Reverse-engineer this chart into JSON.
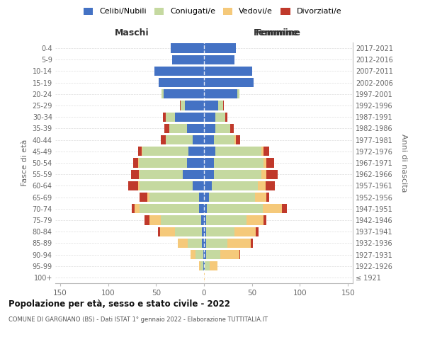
{
  "age_groups": [
    "100+",
    "95-99",
    "90-94",
    "85-89",
    "80-84",
    "75-79",
    "70-74",
    "65-69",
    "60-64",
    "55-59",
    "50-54",
    "45-49",
    "40-44",
    "35-39",
    "30-34",
    "25-29",
    "20-24",
    "15-19",
    "10-14",
    "5-9",
    "0-4"
  ],
  "birth_years": [
    "≤ 1921",
    "1922-1926",
    "1927-1931",
    "1932-1936",
    "1937-1941",
    "1942-1946",
    "1947-1951",
    "1952-1956",
    "1957-1961",
    "1962-1966",
    "1967-1971",
    "1972-1976",
    "1977-1981",
    "1982-1986",
    "1987-1991",
    "1992-1996",
    "1997-2001",
    "2002-2006",
    "2007-2011",
    "2012-2016",
    "2017-2021"
  ],
  "males": {
    "celibi": [
      0,
      1,
      1,
      2,
      2,
      3,
      5,
      5,
      12,
      22,
      18,
      16,
      12,
      18,
      30,
      20,
      42,
      47,
      52,
      33,
      35
    ],
    "coniugati": [
      0,
      3,
      8,
      15,
      28,
      42,
      62,
      52,
      55,
      45,
      50,
      48,
      28,
      18,
      10,
      4,
      2,
      0,
      0,
      0,
      0
    ],
    "vedovi": [
      0,
      1,
      5,
      10,
      16,
      12,
      5,
      2,
      2,
      1,
      1,
      1,
      0,
      0,
      0,
      0,
      0,
      0,
      0,
      0,
      0
    ],
    "divorziati": [
      0,
      0,
      0,
      0,
      2,
      5,
      3,
      8,
      10,
      8,
      5,
      4,
      5,
      5,
      3,
      1,
      0,
      0,
      0,
      0,
      0
    ]
  },
  "females": {
    "nubili": [
      0,
      1,
      2,
      2,
      2,
      2,
      3,
      5,
      8,
      10,
      10,
      12,
      10,
      12,
      12,
      15,
      35,
      52,
      50,
      32,
      33
    ],
    "coniugate": [
      0,
      5,
      15,
      22,
      30,
      42,
      58,
      48,
      48,
      50,
      52,
      48,
      22,
      15,
      10,
      5,
      2,
      0,
      0,
      0,
      0
    ],
    "vedove": [
      1,
      8,
      20,
      25,
      22,
      18,
      20,
      12,
      8,
      5,
      3,
      2,
      1,
      0,
      0,
      0,
      0,
      0,
      0,
      0,
      0
    ],
    "divorziate": [
      0,
      0,
      1,
      2,
      3,
      3,
      5,
      3,
      10,
      12,
      8,
      6,
      5,
      4,
      2,
      1,
      0,
      0,
      0,
      0,
      0
    ]
  },
  "colors": {
    "celibi_nubili": "#4472c4",
    "coniugati": "#c5d9a0",
    "vedovi": "#f5c97a",
    "divorziati": "#c0392b"
  },
  "title": "Popolazione per età, sesso e stato civile - 2022",
  "subtitle": "COMUNE DI GARGNANO (BS) - Dati ISTAT 1° gennaio 2022 - Elaborazione TUTTITALIA.IT",
  "label_maschi": "Maschi",
  "label_femmine": "Femmine",
  "ylabel_left": "Fasce di età",
  "ylabel_right": "Anni di nascita",
  "xlim": 155,
  "background_color": "#ffffff",
  "grid_color": "#dddddd",
  "legend": [
    "Celibi/Nubili",
    "Coniugati/e",
    "Vedovi/e",
    "Divorziati/e"
  ]
}
